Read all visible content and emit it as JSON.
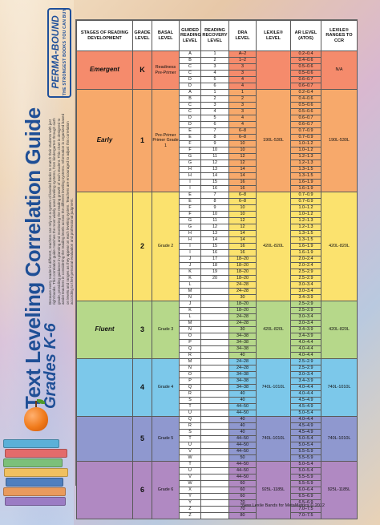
{
  "sidebar": {
    "title": "Text Leveling Correlation Guide",
    "subtitle": "Grades K-6",
    "intro": "Because every reader is different, teachers can rely on a system of leveled books to match their students with just right books. This correlation guide matches the most widely used leveling systems, from kindergarten through sixth grade, providing guidance in planning and monitoring the reading growth of each student. This chart is designed to assist teachers in considering the reading levels across the different leveling systems. Information is organized based on levels and ranges as they appear on each leveling system. Teachers are encouraged to adjust this correlation according to their personal evaluation and professional judgment.",
    "brand_name": "PERMA-BOUND",
    "brand_tagline": "THE STRONGEST BOOKS YOU CAN BUY"
  },
  "colors": {
    "emergent": "#f58b6c",
    "early": "#f7a96b",
    "grade2": "#fbe26e",
    "grade3": "#b6d88a",
    "grade4": "#7cc8ea",
    "grade5": "#8f98cf",
    "grade6": "#b089c2"
  },
  "table": {
    "headers": [
      "STAGES OF READING DEVELOPMENT",
      "GRADE LEVEL",
      "BASAL LEVEL",
      "GUIDED READING LEVEL",
      "READING RECOVERY LEVEL",
      "DRA LEVEL",
      "LEXILE® LEVEL",
      "AR LEVEL (ATOS)",
      "LEXILE® RANGES TO CCR"
    ],
    "sections": [
      {
        "key": "emergent",
        "stage": "Emergent",
        "grade": "K",
        "basal": "Readiness Pre-Primer",
        "lexile": "",
        "ccr": "N/A",
        "rows": [
          [
            "A",
            "1",
            "A–2",
            "0.2–0.4"
          ],
          [
            "B",
            "2",
            "1–2",
            "0.4–0.6"
          ],
          [
            "C",
            "3",
            "3",
            "0.5–0.6"
          ],
          [
            "C",
            "4",
            "3",
            "0.5–0.6"
          ],
          [
            "D",
            "5",
            "4",
            "0.6–0.7"
          ],
          [
            "D",
            "6",
            "4",
            "0.6–0.7"
          ]
        ],
        "merge": {
          "dra": [
            [
              1,
              1
            ],
            [
              2,
              2
            ],
            [
              4,
              2
            ]
          ],
          "gr": [
            [
              0,
              1
            ],
            [
              1,
              1
            ],
            [
              2,
              2
            ],
            [
              4,
              2
            ]
          ]
        }
      },
      {
        "key": "early",
        "stage": "Early",
        "grade": "1",
        "basal": "Pre-Primer Primer Grade 1",
        "lexile": "190L-530L",
        "ccr": "190L-530L",
        "rows": [
          [
            "A",
            "1",
            "1",
            "0.2–0.4"
          ],
          [
            "B",
            "2",
            "2",
            "0.4–0.6"
          ],
          [
            "C",
            "3",
            "3",
            "0.5–0.6"
          ],
          [
            "C",
            "4",
            "3",
            "0.5–0.6"
          ],
          [
            "D",
            "5",
            "4",
            "0.6–0.7"
          ],
          [
            "D",
            "6",
            "4",
            "0.6–0.7"
          ],
          [
            "E",
            "7",
            "6–8",
            "0.7–0.9"
          ],
          [
            "E",
            "8",
            "6–8",
            "0.7–0.9"
          ],
          [
            "F",
            "9",
            "10",
            "1.0–1.2"
          ],
          [
            "F",
            "10",
            "10",
            "1.0–1.2"
          ],
          [
            "G",
            "11",
            "12",
            "1.2–1.3"
          ],
          [
            "G",
            "12",
            "12",
            "1.2–1.3"
          ],
          [
            "H",
            "13",
            "14",
            "1.3–1.5"
          ],
          [
            "H",
            "14",
            "14",
            "1.3–1.5"
          ],
          [
            "I",
            "15",
            "16",
            "1.6–1.9"
          ],
          [
            "I",
            "16",
            "16",
            "1.6–1.9"
          ]
        ]
      },
      {
        "key": "grade2",
        "stage": "",
        "grade": "2",
        "basal": "Grade 2",
        "lexile": "420L-820L",
        "ccr": "420L-820L",
        "rows": [
          [
            "E",
            "7",
            "6–8",
            "0.7–0.9"
          ],
          [
            "E",
            "8",
            "6–8",
            "0.7–0.9"
          ],
          [
            "F",
            "9",
            "10",
            "1.0–1.2"
          ],
          [
            "F",
            "10",
            "10",
            "1.0–1.2"
          ],
          [
            "G",
            "11",
            "12",
            "1.2–1.3"
          ],
          [
            "G",
            "12",
            "12",
            "1.2–1.3"
          ],
          [
            "H",
            "13",
            "14",
            "1.3–1.5"
          ],
          [
            "H",
            "14",
            "14",
            "1.3–1.5"
          ],
          [
            "I",
            "15",
            "16",
            "1.6–1.9"
          ],
          [
            "I",
            "16",
            "16",
            "1.6–1.9"
          ],
          [
            "J",
            "17",
            "18–20",
            "2.0–2.4"
          ],
          [
            "J",
            "18",
            "18–20",
            "2.0–2.4"
          ],
          [
            "K",
            "19",
            "18–20",
            "2.5–2.9"
          ],
          [
            "K",
            "20",
            "18–20",
            "2.5–2.9"
          ],
          [
            "L",
            "",
            "24–28",
            "3.0–3.4"
          ],
          [
            "M",
            "",
            "24–28",
            "3.0–3.4"
          ],
          [
            "N",
            "",
            "30",
            "3.4–3.9"
          ]
        ]
      },
      {
        "key": "grade3",
        "stage": "Fluent",
        "grade": "3",
        "basal": "Grade 3",
        "lexile": "420L-820L",
        "ccr": "420L-820L",
        "rows": [
          [
            "J",
            "",
            "18–20",
            "2.5–2.9"
          ],
          [
            "K",
            "",
            "18–20",
            "2.5–2.9"
          ],
          [
            "L",
            "",
            "24–28",
            "3.0–3.4"
          ],
          [
            "M",
            "",
            "24–28",
            "3.0–3.4"
          ],
          [
            "N",
            "",
            "30",
            "3.4–3.9"
          ],
          [
            "O",
            "",
            "34–38",
            "3.4–3.9"
          ],
          [
            "P",
            "",
            "34–38",
            "4.0–4.4"
          ],
          [
            "Q",
            "",
            "34–38",
            "4.0–4.4"
          ],
          [
            "R",
            "",
            "40",
            "4.0–4.4"
          ]
        ]
      },
      {
        "key": "grade4",
        "stage": "",
        "grade": "4",
        "basal": "Grade 4",
        "lexile": "740L-1010L",
        "ccr": "740L-1010L",
        "rows": [
          [
            "M",
            "",
            "24–28",
            "2.5–2.9"
          ],
          [
            "N",
            "",
            "24–28",
            "2.5–2.9"
          ],
          [
            "O",
            "",
            "34–38",
            "3.0–3.4"
          ],
          [
            "P",
            "",
            "34–38",
            "3.4–3.9"
          ],
          [
            "Q",
            "",
            "34–38",
            "4.0–4.4"
          ],
          [
            "R",
            "",
            "40",
            "4.0–4.4"
          ],
          [
            "S",
            "",
            "40",
            "4.5–4.9"
          ],
          [
            "T",
            "",
            "44–50",
            "4.5–4.9"
          ],
          [
            "U",
            "",
            "44–50",
            "5.0–5.4"
          ]
        ]
      },
      {
        "key": "grade5",
        "stage": "",
        "grade": "5",
        "basal": "Grade 5",
        "lexile": "740L-1010L",
        "ccr": "740L-1010L",
        "rows": [
          [
            "Q",
            "",
            "40",
            "4.0–4.4"
          ],
          [
            "R",
            "",
            "40",
            "4.5–4.9"
          ],
          [
            "S",
            "",
            "40",
            "4.5–4.9"
          ],
          [
            "T",
            "",
            "44–50",
            "5.0–5.4"
          ],
          [
            "U",
            "",
            "44–50",
            "5.0–5.4"
          ],
          [
            "V",
            "",
            "44–50",
            "5.5–5.9"
          ],
          [
            "W",
            "",
            "50",
            "5.5–5.9"
          ]
        ]
      },
      {
        "key": "grade6",
        "stage": "",
        "grade": "6",
        "basal": "Grade 6",
        "lexile": "925L-1185L",
        "ccr": "925L-1185L",
        "rows": [
          [
            "T",
            "",
            "44–50",
            "5.0–5.4"
          ],
          [
            "U",
            "",
            "44–50",
            "5.0–5.4"
          ],
          [
            "V",
            "",
            "44–50",
            "5.5–5.9"
          ],
          [
            "W",
            "",
            "60",
            "5.5–5.9"
          ],
          [
            "X",
            "",
            "60",
            "6.0–6.4"
          ],
          [
            "Y",
            "",
            "60",
            "6.5–6.9"
          ],
          [
            "Y",
            "",
            "70",
            "6.5–6.9"
          ],
          [
            "Z",
            "",
            "70",
            "7.0–7.5"
          ],
          [
            "Z",
            "",
            "80",
            "7.0–7.5"
          ]
        ]
      }
    ]
  },
  "footnote": "*New Lexile Bands for MetaMetrics © 2012"
}
